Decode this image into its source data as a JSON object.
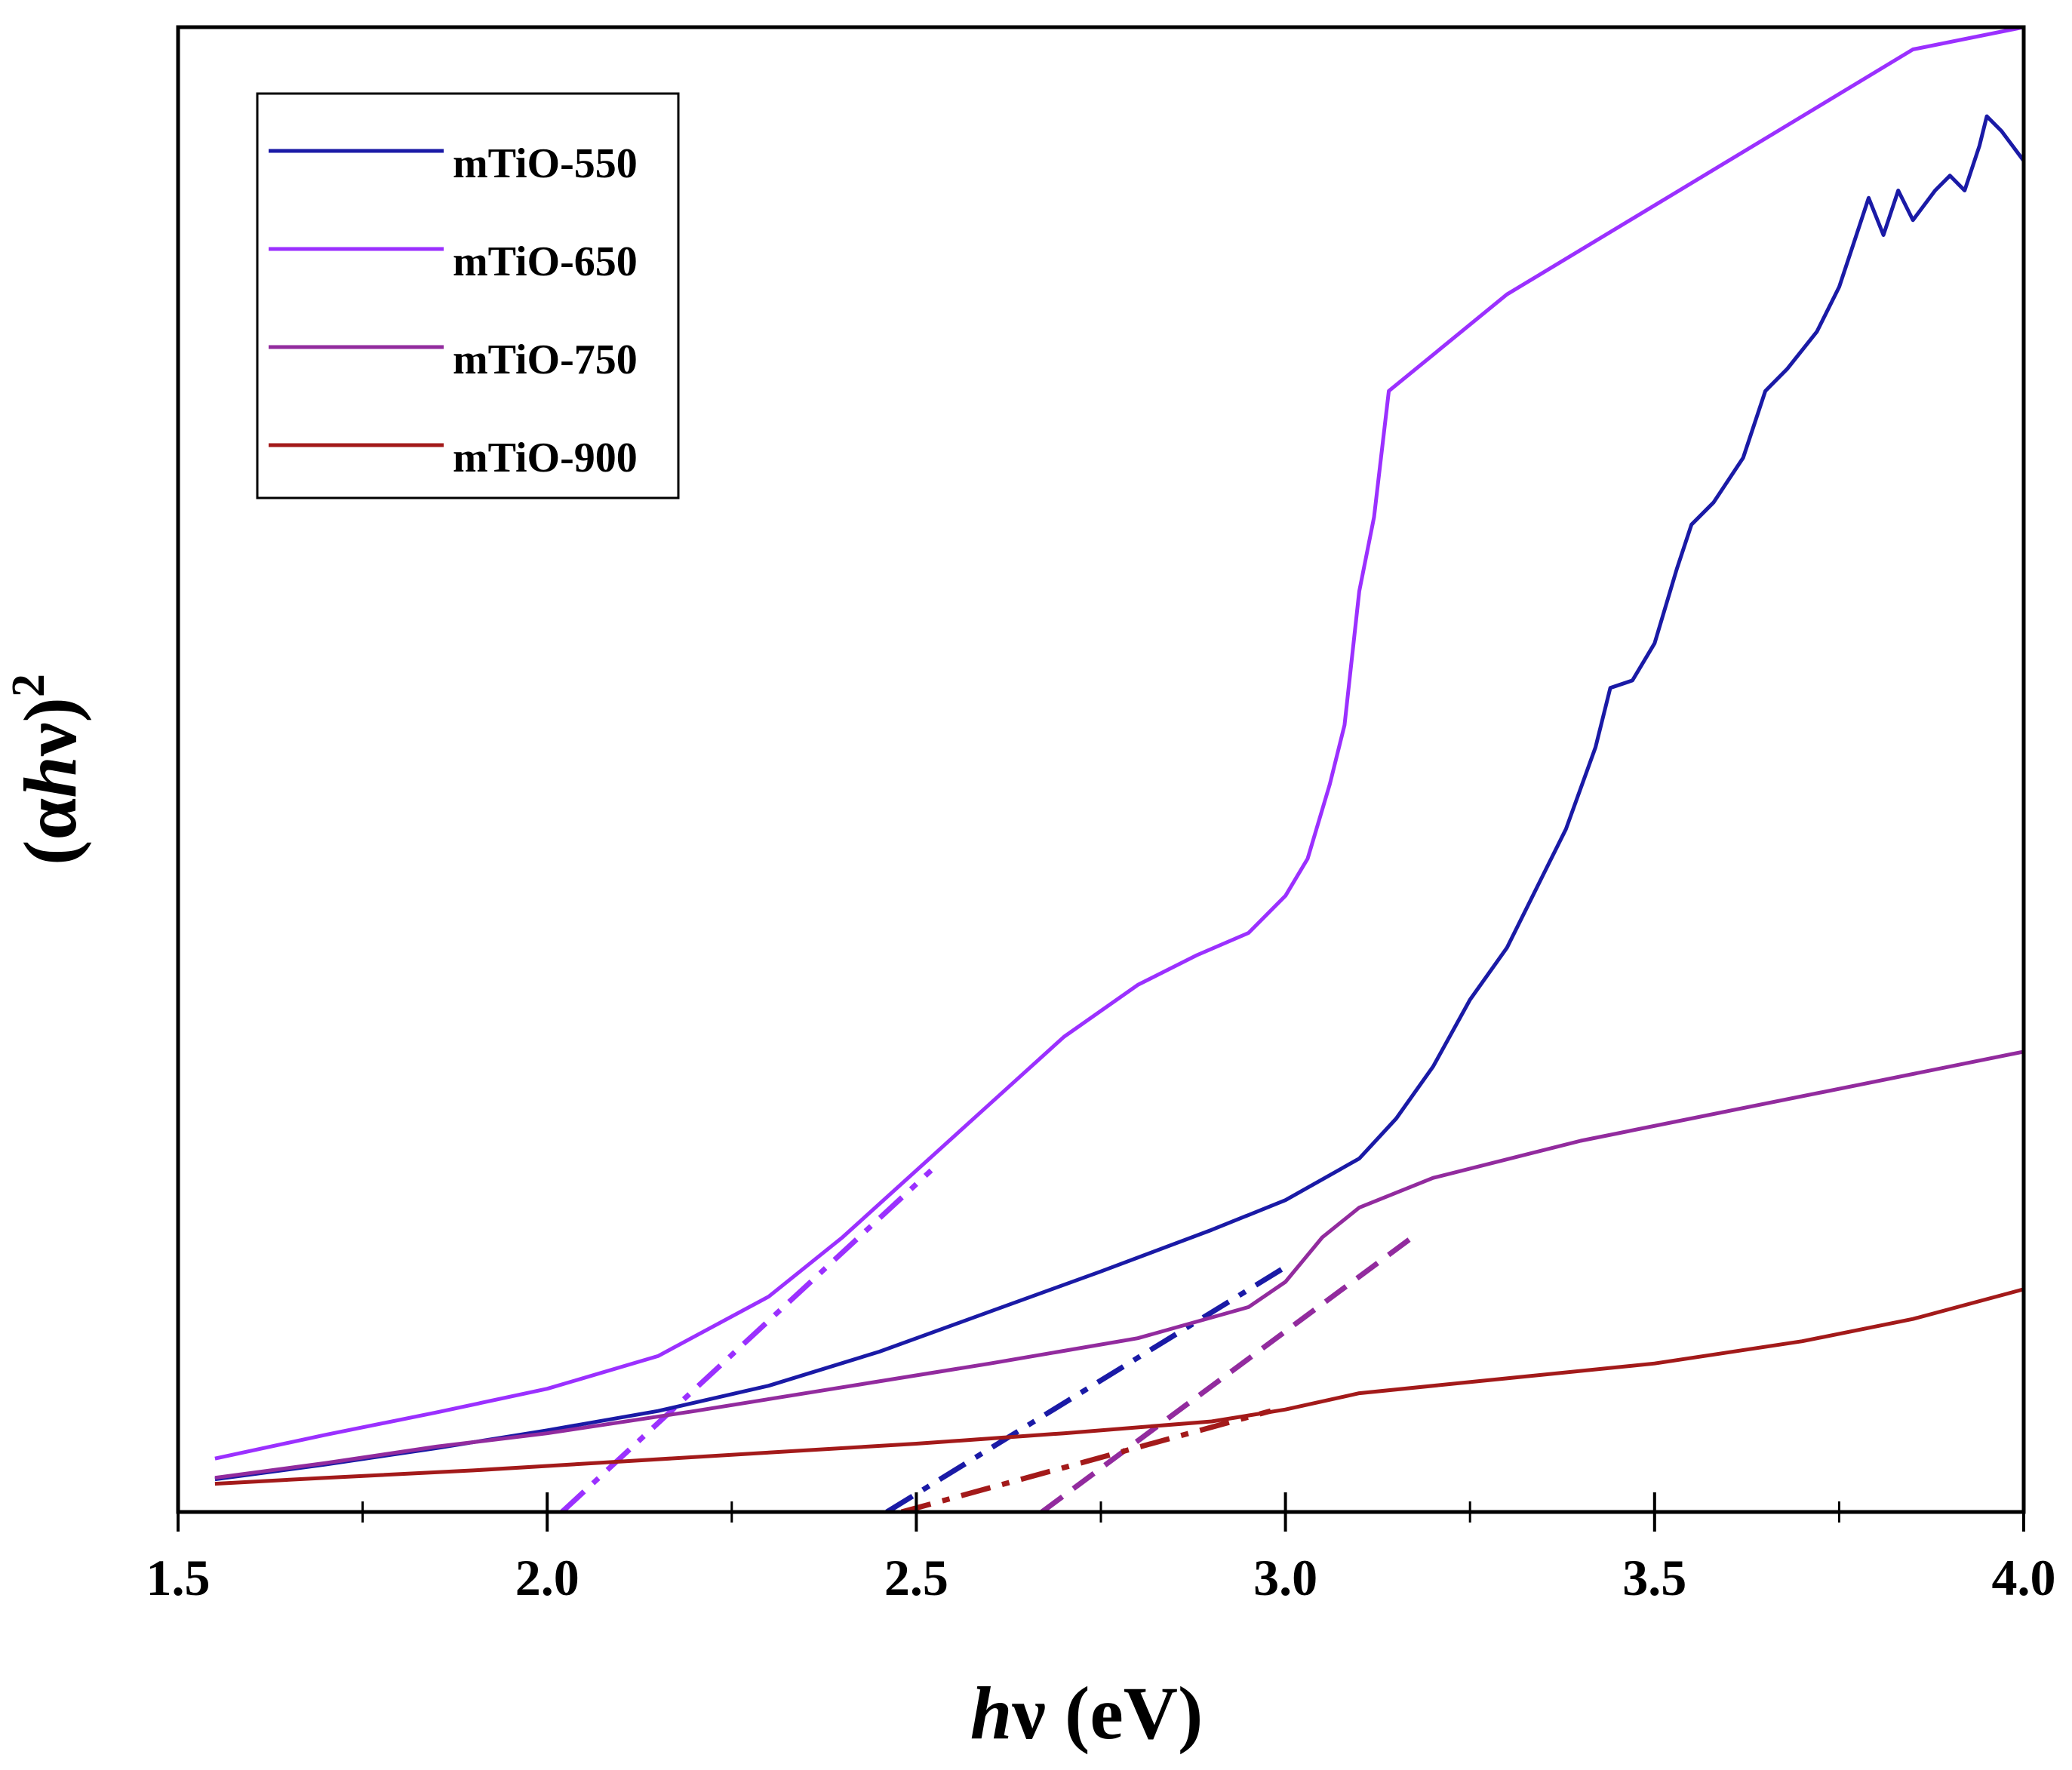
{
  "chart_data": {
    "type": "line",
    "title": "",
    "xlabel": "hν (eV)",
    "xlabel_parts": {
      "h": "h",
      "nu": "ν",
      "unit": " (eV)"
    },
    "ylabel": "(αhν)²",
    "ylabel_parts": {
      "open": "(α",
      "h": "h",
      "close": "ν)",
      "sup": "2"
    },
    "xlim": [
      1.5,
      4.0
    ],
    "ylim": [
      0,
      100
    ],
    "x_ticks": [
      1.5,
      2.0,
      2.5,
      3.0,
      3.5,
      4.0
    ],
    "x_tick_labels": [
      "1.5",
      "2.0",
      "2.5",
      "3.0",
      "3.5",
      "4.0"
    ],
    "x_minor_ticks": [
      1.75,
      2.25,
      2.75,
      3.25,
      3.75
    ],
    "y_ticks_shown": false,
    "grid": false,
    "legend_position": "top-left",
    "series": [
      {
        "name": "mTiO-550",
        "color": "#1a1aa6",
        "x": [
          1.55,
          1.7,
          1.85,
          2.0,
          2.15,
          2.3,
          2.45,
          2.6,
          2.75,
          2.9,
          3.0,
          3.1,
          3.15,
          3.2,
          3.25,
          3.3,
          3.35,
          3.38,
          3.42,
          3.44,
          3.47,
          3.5,
          3.53,
          3.55,
          3.58,
          3.62,
          3.65,
          3.68,
          3.72,
          3.75,
          3.77,
          3.79,
          3.81,
          3.83,
          3.85,
          3.88,
          3.9,
          3.92,
          3.94,
          3.95,
          3.97,
          4.0
        ],
        "y": [
          2.2,
          3.2,
          4.3,
          5.5,
          6.8,
          8.5,
          10.8,
          13.5,
          16.2,
          19.0,
          21.0,
          23.8,
          26.5,
          30.0,
          34.5,
          38.0,
          43.0,
          46.0,
          51.5,
          55.5,
          56.0,
          58.5,
          63.5,
          66.5,
          68.0,
          71.0,
          75.5,
          77.0,
          79.5,
          82.5,
          85.5,
          88.5,
          86.0,
          89.0,
          87.0,
          89.0,
          90.0,
          89.0,
          92.0,
          94.0,
          93.0,
          91.0
        ]
      },
      {
        "name": "mTiO-650",
        "color": "#9b30ff",
        "x": [
          1.55,
          1.7,
          1.85,
          2.0,
          2.15,
          2.3,
          2.4,
          2.5,
          2.6,
          2.7,
          2.8,
          2.88,
          2.95,
          3.0,
          3.03,
          3.06,
          3.08,
          3.1,
          3.12,
          3.14,
          3.3,
          3.5,
          3.7,
          3.85,
          4.0
        ],
        "y": [
          3.6,
          5.2,
          6.7,
          8.3,
          10.5,
          14.5,
          18.5,
          23.0,
          27.5,
          32.0,
          35.5,
          37.5,
          39.0,
          41.5,
          44.0,
          49.0,
          53.0,
          62.0,
          67.0,
          75.5,
          82.0,
          88.0,
          94.0,
          98.5,
          100.0
        ]
      },
      {
        "name": "mTiO-750",
        "color": "#922b9e",
        "x": [
          1.55,
          1.7,
          1.85,
          2.0,
          2.2,
          2.4,
          2.6,
          2.8,
          2.95,
          3.0,
          3.05,
          3.1,
          3.2,
          3.4,
          3.6,
          3.8,
          4.0
        ],
        "y": [
          2.3,
          3.3,
          4.4,
          5.3,
          6.8,
          8.4,
          10.0,
          11.7,
          13.8,
          15.5,
          18.5,
          20.5,
          22.5,
          25.0,
          27.0,
          29.0,
          31.0
        ]
      },
      {
        "name": "mTiO-900",
        "color": "#a31a1a",
        "x": [
          1.55,
          1.7,
          1.9,
          2.1,
          2.3,
          2.5,
          2.7,
          2.9,
          3.0,
          3.1,
          3.3,
          3.5,
          3.7,
          3.85,
          4.0
        ],
        "y": [
          1.9,
          2.3,
          2.8,
          3.4,
          4.0,
          4.6,
          5.3,
          6.1,
          6.9,
          8.0,
          9.0,
          10.0,
          11.5,
          13.0,
          15.0
        ]
      }
    ],
    "tangent_lines": [
      {
        "series": "mTiO-650",
        "x": [
          2.02,
          2.52
        ],
        "y": [
          0.0,
          23.0
        ],
        "style": "dash-dot",
        "color": "#9b30ff"
      },
      {
        "series": "mTiO-550",
        "x": [
          2.46,
          3.0
        ],
        "y": [
          0.0,
          16.5
        ],
        "style": "dash-dot",
        "color": "#1a1aa6"
      },
      {
        "series": "mTiO-750",
        "x": [
          2.67,
          3.18
        ],
        "y": [
          0.0,
          18.8
        ],
        "style": "dashed",
        "color": "#922b9e"
      },
      {
        "series": "mTiO-900",
        "x": [
          2.48,
          2.98
        ],
        "y": [
          0.0,
          6.8
        ],
        "style": "dash-dot",
        "color": "#a31a1a"
      }
    ]
  }
}
